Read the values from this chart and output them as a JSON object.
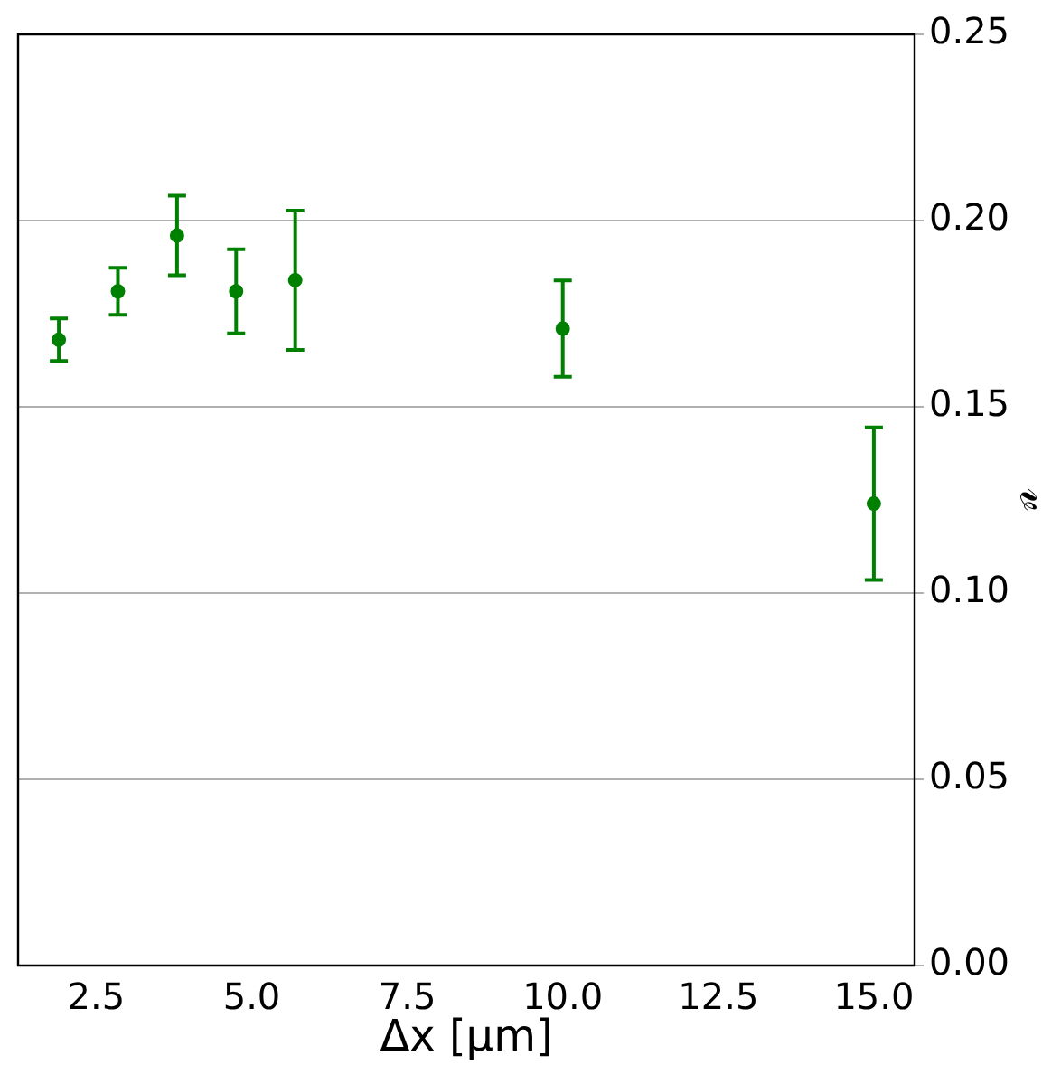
{
  "chart_data": {
    "type": "scatter",
    "xlabel": "Δx [μm]",
    "ylabel": "𝓋",
    "x": [
      1.9,
      2.85,
      3.8,
      4.75,
      5.7,
      10.0,
      15.0
    ],
    "series": [
      {
        "color": "#008000",
        "values": [
          0.168,
          0.181,
          0.196,
          0.181,
          0.184,
          0.171,
          0.124
        ],
        "errors": [
          0.0057,
          0.0063,
          0.0107,
          0.0113,
          0.0187,
          0.0129,
          0.0205
        ]
      }
    ],
    "marker": "circle",
    "grid": "y",
    "legend": false,
    "xlim": [
      1.245,
      15.655
    ],
    "xticks": [
      2.5,
      {
        "value": 5,
        "label": "5.0"
      },
      7.5,
      {
        "value": 10,
        "label": "10.0"
      },
      12.5,
      {
        "value": 15,
        "label": "15.0"
      }
    ],
    "ylim": [
      0,
      0.25
    ],
    "yticks": [
      {
        "value": 0,
        "label": "0.00"
      },
      {
        "value": 0.05,
        "label": "0.05"
      },
      {
        "value": 0.1,
        "label": "0.10"
      },
      {
        "value": 0.15,
        "label": "0.15"
      },
      {
        "value": 0.2,
        "label": "0.20"
      },
      {
        "value": 0.25,
        "label": "0.25"
      }
    ]
  }
}
